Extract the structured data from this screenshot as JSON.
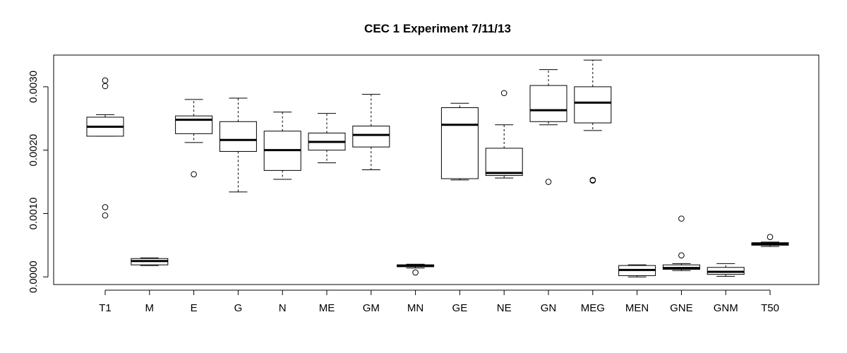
{
  "chart_data": {
    "type": "boxplot",
    "title": "CEC 1 Experiment 7/11/13",
    "xlabel": "",
    "ylabel": "",
    "ylim": [
      -0.00012,
      0.0035
    ],
    "yticks": [
      0.0,
      0.001,
      0.002,
      0.003
    ],
    "ytick_labels": [
      "0.0000",
      "0.0010",
      "0.0020",
      "0.0030"
    ],
    "grid": false,
    "legend": "none",
    "categories": [
      "T1",
      "M",
      "E",
      "G",
      "N",
      "ME",
      "GM",
      "MN",
      "GE",
      "NE",
      "GN",
      "MEG",
      "MEN",
      "GNE",
      "GNM",
      "T50"
    ],
    "boxes": [
      {
        "label": "T1",
        "min": 0.00222,
        "q1": 0.00222,
        "median": 0.00237,
        "q3": 0.00252,
        "max": 0.00256,
        "outliers": [
          0.0031,
          0.00301,
          0.0011,
          0.00097
        ]
      },
      {
        "label": "M",
        "min": 0.00018,
        "q1": 0.00019,
        "median": 0.00025,
        "q3": 0.00029,
        "max": 0.0003,
        "outliers": []
      },
      {
        "label": "E",
        "min": 0.00212,
        "q1": 0.00226,
        "median": 0.00248,
        "q3": 0.00254,
        "max": 0.0028,
        "outliers": [
          0.00162
        ]
      },
      {
        "label": "G",
        "min": 0.00134,
        "q1": 0.00198,
        "median": 0.00216,
        "q3": 0.00245,
        "max": 0.00282,
        "outliers": []
      },
      {
        "label": "N",
        "min": 0.00154,
        "q1": 0.00168,
        "median": 0.002,
        "q3": 0.0023,
        "max": 0.0026,
        "outliers": []
      },
      {
        "label": "ME",
        "min": 0.0018,
        "q1": 0.002,
        "median": 0.00213,
        "q3": 0.00227,
        "max": 0.00258,
        "outliers": []
      },
      {
        "label": "GM",
        "min": 0.00169,
        "q1": 0.00205,
        "median": 0.00224,
        "q3": 0.00238,
        "max": 0.00288,
        "outliers": []
      },
      {
        "label": "MN",
        "min": 0.00014,
        "q1": 0.00016,
        "median": 0.00018,
        "q3": 0.00019,
        "max": 0.0002,
        "outliers": [
          7e-05
        ]
      },
      {
        "label": "GE",
        "min": 0.00153,
        "q1": 0.00155,
        "median": 0.0024,
        "q3": 0.00267,
        "max": 0.00274,
        "outliers": []
      },
      {
        "label": "NE",
        "min": 0.00156,
        "q1": 0.0016,
        "median": 0.00164,
        "q3": 0.00203,
        "max": 0.0024,
        "outliers": [
          0.0029
        ]
      },
      {
        "label": "GN",
        "min": 0.0024,
        "q1": 0.00245,
        "median": 0.00263,
        "q3": 0.00302,
        "max": 0.00327,
        "outliers": [
          0.0015
        ]
      },
      {
        "label": "MEG",
        "min": 0.00231,
        "q1": 0.00243,
        "median": 0.00275,
        "q3": 0.003,
        "max": 0.00342,
        "outliers": [
          0.00153,
          0.00152
        ]
      },
      {
        "label": "MEN",
        "min": 0.0,
        "q1": 2e-05,
        "median": 0.00011,
        "q3": 0.00018,
        "max": 0.00019,
        "outliers": []
      },
      {
        "label": "GNE",
        "min": 0.0001,
        "q1": 0.00012,
        "median": 0.00014,
        "q3": 0.00019,
        "max": 0.00021,
        "outliers": [
          0.00092,
          0.00034
        ]
      },
      {
        "label": "GNM",
        "min": 1e-05,
        "q1": 4e-05,
        "median": 8e-05,
        "q3": 0.00015,
        "max": 0.00021,
        "outliers": []
      },
      {
        "label": "T50",
        "min": 0.00048,
        "q1": 0.0005,
        "median": 0.00052,
        "q3": 0.00054,
        "max": 0.00055,
        "outliers": [
          0.00063
        ]
      }
    ]
  }
}
